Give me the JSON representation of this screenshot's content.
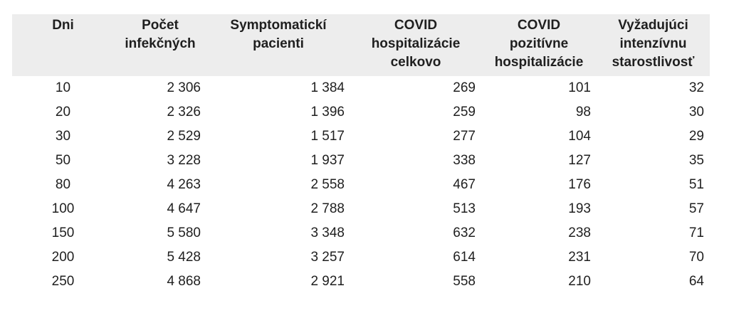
{
  "colors": {
    "header_bg": "#ededed",
    "text": "#1f1f1f",
    "background": "#ffffff"
  },
  "table": {
    "columns": [
      {
        "label": "Dni"
      },
      {
        "label": "Počet\ninfekčných"
      },
      {
        "label": "Symptomatickí\npacienti"
      },
      {
        "label": "COVID\nhospitalizácie\ncelkovo"
      },
      {
        "label": "COVID\npozitívne\nhospitalizácie"
      },
      {
        "label": "Vyžadujúci\nintenzívnu\nstarostlivosť"
      }
    ],
    "rows": [
      [
        "10",
        "2 306",
        "1 384",
        "269",
        "101",
        "32"
      ],
      [
        "20",
        "2 326",
        "1 396",
        "259",
        "98",
        "30"
      ],
      [
        "30",
        "2 529",
        "1 517",
        "277",
        "104",
        "29"
      ],
      [
        "50",
        "3 228",
        "1 937",
        "338",
        "127",
        "35"
      ],
      [
        "80",
        "4 263",
        "2 558",
        "467",
        "176",
        "51"
      ],
      [
        "100",
        "4 647",
        "2 788",
        "513",
        "193",
        "57"
      ],
      [
        "150",
        "5 580",
        "3 348",
        "632",
        "238",
        "71"
      ],
      [
        "200",
        "5 428",
        "3 257",
        "614",
        "231",
        "70"
      ],
      [
        "250",
        "4 868",
        "2 921",
        "558",
        "210",
        "64"
      ]
    ]
  },
  "chart_data": {
    "type": "table",
    "title": "",
    "columns": [
      "Dni",
      "Počet infekčných",
      "Symptomatickí pacienti",
      "COVID hospitalizácie celkovo",
      "COVID pozitívne hospitalizácie",
      "Vyžadujúci intenzívnu starostlivosť"
    ],
    "x": [
      10,
      20,
      30,
      50,
      80,
      100,
      150,
      200,
      250
    ],
    "series": [
      {
        "name": "Počet infekčných",
        "values": [
          2306,
          2326,
          2529,
          3228,
          4263,
          4647,
          5580,
          5428,
          4868
        ]
      },
      {
        "name": "Symptomatickí pacienti",
        "values": [
          1384,
          1396,
          1517,
          1937,
          2558,
          2788,
          3348,
          3257,
          2921
        ]
      },
      {
        "name": "COVID hospitalizácie celkovo",
        "values": [
          269,
          259,
          277,
          338,
          467,
          513,
          632,
          614,
          558
        ]
      },
      {
        "name": "COVID pozitívne hospitalizácie",
        "values": [
          101,
          98,
          104,
          127,
          176,
          193,
          238,
          231,
          210
        ]
      },
      {
        "name": "Vyžadujúci intenzívnu starostlivosť",
        "values": [
          32,
          30,
          29,
          35,
          51,
          57,
          71,
          70,
          64
        ]
      }
    ],
    "layout": {
      "grid": false,
      "legend": "none",
      "header_background": "#ededed"
    }
  }
}
